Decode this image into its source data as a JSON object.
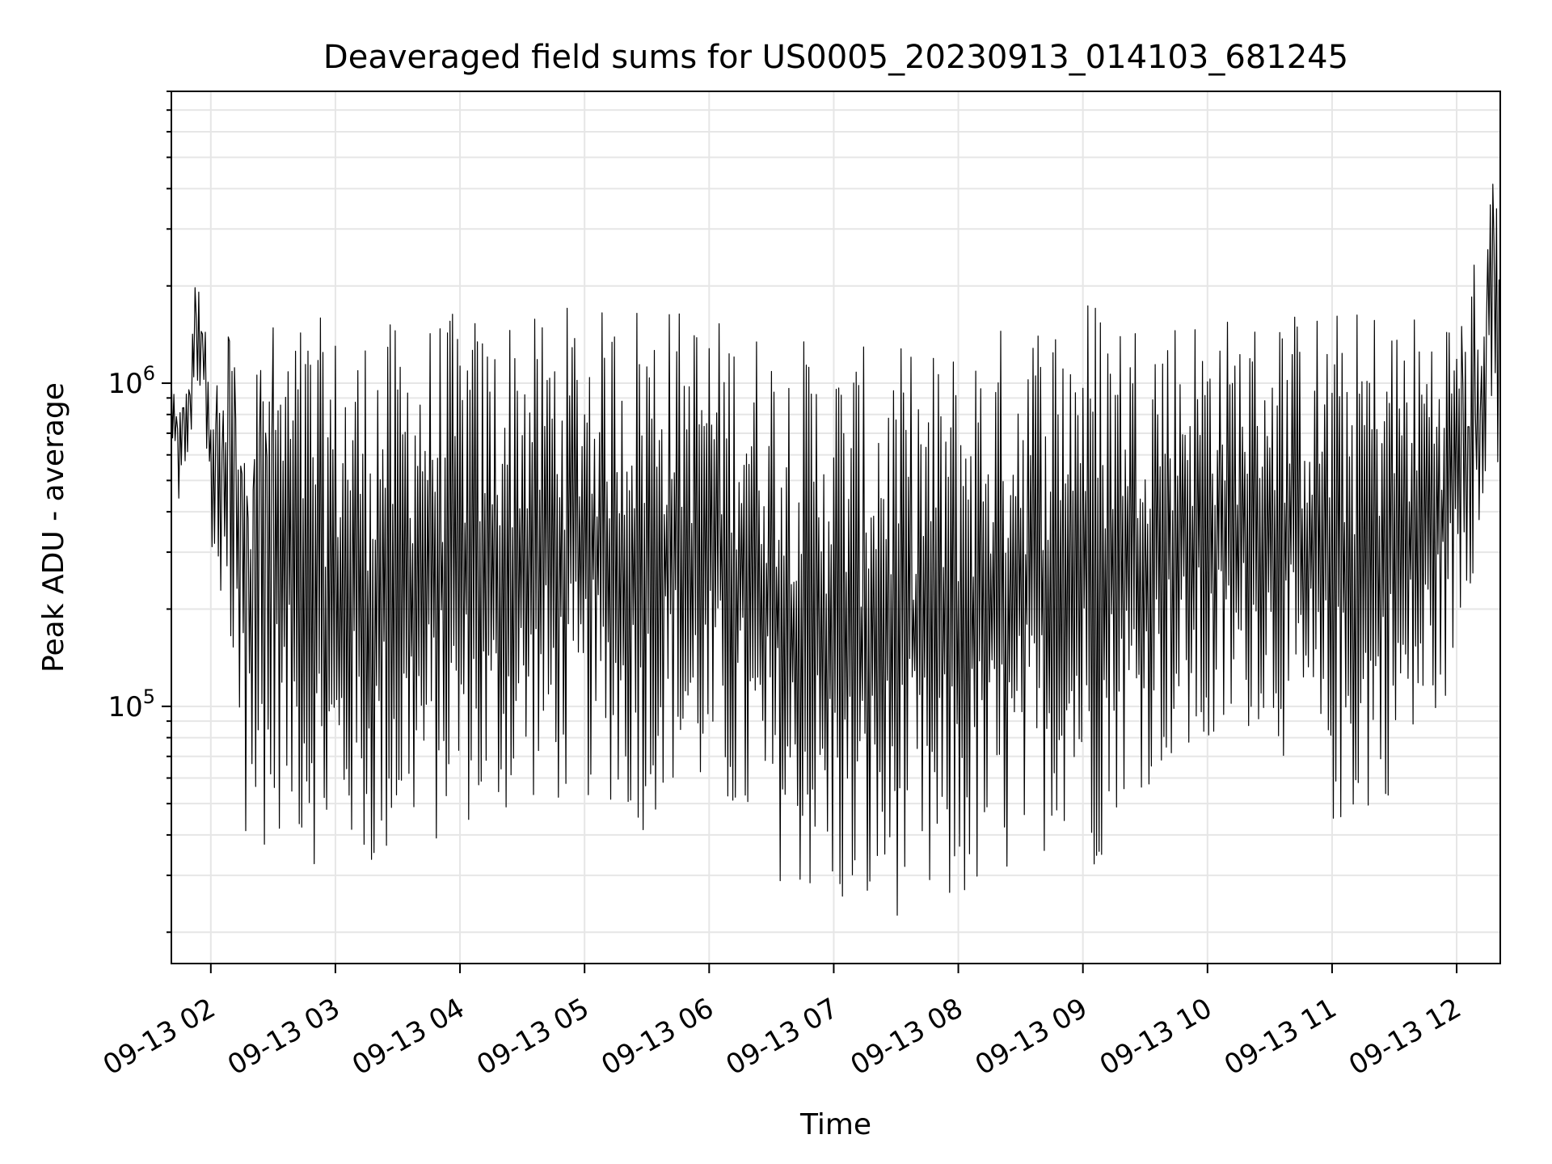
{
  "chart_data": {
    "type": "line",
    "title": "Deaveraged field sums for US0005_20230913_014103_681245",
    "xlabel": "Time",
    "ylabel": "Peak ADU - average",
    "yscale": "log",
    "ylim": [
      16000,
      8000000
    ],
    "xlim": [
      "2023-09-13T01:41:00",
      "2023-09-13T12:21:00"
    ],
    "x_ticks": [
      {
        "value": "2023-09-13T02:00",
        "label": "09-13 02"
      },
      {
        "value": "2023-09-13T03:00",
        "label": "09-13 03"
      },
      {
        "value": "2023-09-13T04:00",
        "label": "09-13 04"
      },
      {
        "value": "2023-09-13T05:00",
        "label": "09-13 05"
      },
      {
        "value": "2023-09-13T06:00",
        "label": "09-13 06"
      },
      {
        "value": "2023-09-13T07:00",
        "label": "09-13 07"
      },
      {
        "value": "2023-09-13T08:00",
        "label": "09-13 08"
      },
      {
        "value": "2023-09-13T09:00",
        "label": "09-13 09"
      },
      {
        "value": "2023-09-13T10:00",
        "label": "09-13 10"
      },
      {
        "value": "2023-09-13T11:00",
        "label": "09-13 11"
      },
      {
        "value": "2023-09-13T12:00",
        "label": "09-13 12"
      }
    ],
    "y_ticks": [
      {
        "value": 100000,
        "base": "10",
        "exp": "5"
      },
      {
        "value": 1000000,
        "base": "10",
        "exp": "6"
      }
    ],
    "grid": true,
    "line_color": "#000000",
    "grid_color": "#e6e6e6",
    "series": [
      {
        "x": [
          "2023-09-13T01:41",
          "2023-09-13T01:44",
          "2023-09-13T01:47",
          "2023-09-13T01:50",
          "2023-09-13T01:53",
          "2023-09-13T01:56",
          "2023-09-13T02:00",
          "2023-09-13T02:03",
          "2023-09-13T02:06",
          "2023-09-13T02:09",
          "2023-09-13T02:12",
          "2023-09-13T02:15",
          "2023-09-13T02:18",
          "2023-09-13T02:21",
          "2023-09-13T02:24",
          "2023-09-13T02:27",
          "2023-09-13T02:30",
          "2023-09-13T02:36",
          "2023-09-13T02:42",
          "2023-09-13T02:48",
          "2023-09-13T02:54",
          "2023-09-13T03:00",
          "2023-09-13T03:06",
          "2023-09-13T03:12",
          "2023-09-13T03:18",
          "2023-09-13T03:24",
          "2023-09-13T03:30",
          "2023-09-13T03:36",
          "2023-09-13T03:42",
          "2023-09-13T03:48",
          "2023-09-13T03:54",
          "2023-09-13T04:00",
          "2023-09-13T04:06",
          "2023-09-13T04:12",
          "2023-09-13T04:18",
          "2023-09-13T04:24",
          "2023-09-13T04:30",
          "2023-09-13T04:36",
          "2023-09-13T04:42",
          "2023-09-13T04:48",
          "2023-09-13T04:54",
          "2023-09-13T05:00",
          "2023-09-13T05:06",
          "2023-09-13T05:12",
          "2023-09-13T05:18",
          "2023-09-13T05:24",
          "2023-09-13T05:30",
          "2023-09-13T05:36",
          "2023-09-13T05:42",
          "2023-09-13T05:48",
          "2023-09-13T05:54",
          "2023-09-13T06:00",
          "2023-09-13T06:06",
          "2023-09-13T06:12",
          "2023-09-13T06:18",
          "2023-09-13T06:24",
          "2023-09-13T06:30",
          "2023-09-13T06:36",
          "2023-09-13T06:42",
          "2023-09-13T06:48",
          "2023-09-13T06:54",
          "2023-09-13T07:00",
          "2023-09-13T07:06",
          "2023-09-13T07:12",
          "2023-09-13T07:18",
          "2023-09-13T07:24",
          "2023-09-13T07:30",
          "2023-09-13T07:36",
          "2023-09-13T07:42",
          "2023-09-13T07:48",
          "2023-09-13T07:54",
          "2023-09-13T08:00",
          "2023-09-13T08:06",
          "2023-09-13T08:12",
          "2023-09-13T08:18",
          "2023-09-13T08:24",
          "2023-09-13T08:30",
          "2023-09-13T08:36",
          "2023-09-13T08:42",
          "2023-09-13T08:48",
          "2023-09-13T08:54",
          "2023-09-13T09:00",
          "2023-09-13T09:06",
          "2023-09-13T09:12",
          "2023-09-13T09:18",
          "2023-09-13T09:24",
          "2023-09-13T09:30",
          "2023-09-13T09:36",
          "2023-09-13T09:42",
          "2023-09-13T09:48",
          "2023-09-13T09:54",
          "2023-09-13T10:00",
          "2023-09-13T10:06",
          "2023-09-13T10:12",
          "2023-09-13T10:18",
          "2023-09-13T10:24",
          "2023-09-13T10:30",
          "2023-09-13T10:36",
          "2023-09-13T10:42",
          "2023-09-13T10:48",
          "2023-09-13T10:54",
          "2023-09-13T11:00",
          "2023-09-13T11:06",
          "2023-09-13T11:12",
          "2023-09-13T11:18",
          "2023-09-13T11:24",
          "2023-09-13T11:30",
          "2023-09-13T11:36",
          "2023-09-13T11:42",
          "2023-09-13T11:48",
          "2023-09-13T11:54",
          "2023-09-13T12:00",
          "2023-09-13T12:03",
          "2023-09-13T12:06",
          "2023-09-13T12:09",
          "2023-09-13T12:12",
          "2023-09-13T12:15",
          "2023-09-13T12:18",
          "2023-09-13T12:21"
        ],
        "high": [
          1200000,
          800000,
          900000,
          1100000,
          2500000,
          1700000,
          1200000,
          1000000,
          900000,
          1900000,
          1500000,
          1400000,
          1500000,
          1500000,
          1400000,
          1500000,
          1600000,
          1500000,
          1600000,
          1600000,
          1600000,
          1500000,
          1400000,
          1500000,
          1600000,
          1600000,
          1500000,
          1600000,
          1600000,
          1600000,
          1700000,
          1600000,
          1700000,
          1500000,
          1600000,
          1700000,
          1700000,
          1600000,
          1700000,
          1700000,
          1800000,
          1800000,
          1700000,
          1700000,
          1800000,
          1900000,
          1900000,
          1800000,
          1800000,
          1700000,
          1700000,
          1700000,
          1600000,
          1600000,
          1600000,
          1500000,
          1500000,
          1400000,
          1400000,
          1400000,
          1300000,
          1300000,
          1300000,
          1300000,
          1300000,
          1300000,
          1300000,
          1300000,
          1200000,
          1300000,
          1300000,
          1400000,
          1400000,
          1500000,
          1500000,
          1600000,
          1700000,
          1700000,
          1700000,
          1800000,
          1800000,
          1900000,
          2000000,
          1800000,
          1800000,
          1700000,
          1700000,
          1700000,
          1700000,
          1700000,
          1700000,
          1700000,
          1700000,
          1600000,
          1600000,
          1600000,
          1700000,
          1700000,
          1700000,
          1800000,
          1700000,
          1700000,
          1700000,
          1700000,
          1800000,
          1800000,
          1700000,
          1700000,
          1700000,
          1700000,
          1700000,
          1900000,
          1700000,
          1800000,
          3100000,
          1500000,
          3600000,
          6200000,
          2000000
        ],
        "low": [
          700000,
          400000,
          500000,
          650000,
          800000,
          900000,
          300000,
          220000,
          180000,
          150000,
          130000,
          33000,
          45000,
          40000,
          38000,
          35000,
          40000,
          42000,
          38000,
          33000,
          30000,
          32000,
          36000,
          30000,
          28000,
          31000,
          35000,
          40000,
          38000,
          36000,
          40000,
          45000,
          42000,
          40000,
          42000,
          45000,
          48000,
          50000,
          52000,
          48000,
          50000,
          50000,
          52000,
          50000,
          45000,
          42000,
          40000,
          50000,
          55000,
          52000,
          50000,
          50000,
          45000,
          40000,
          36000,
          33000,
          30000,
          28000,
          26000,
          25000,
          24000,
          22000,
          21000,
          19000,
          20000,
          21000,
          22000,
          24000,
          22000,
          19000,
          20000,
          22000,
          24000,
          25000,
          26000,
          28000,
          30000,
          33000,
          36000,
          40000,
          45000,
          48000,
          29000,
          40000,
          50000,
          55000,
          55000,
          60000,
          65000,
          60000,
          65000,
          60000,
          70000,
          75000,
          80000,
          90000,
          80000,
          70000,
          60000,
          55000,
          45000,
          42000,
          40000,
          42000,
          45000,
          50000,
          55000,
          60000,
          70000,
          80000,
          100000,
          150000,
          180000,
          200000,
          140000,
          400000,
          600000,
          800000,
          300000
        ]
      }
    ]
  }
}
